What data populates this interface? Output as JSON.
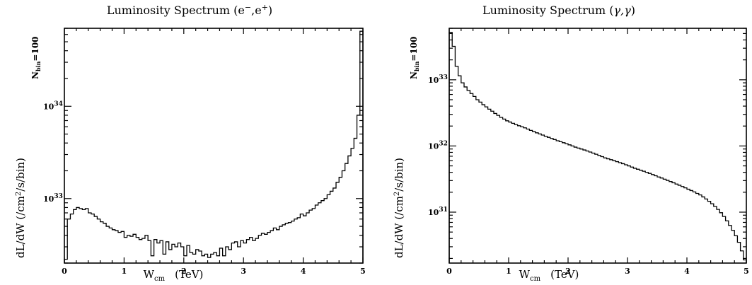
{
  "chart_data": [
    {
      "type": "line",
      "title_parts": {
        "prefix": "Luminosity Spectrum (e",
        "p1": "−",
        "mid": ",e",
        "p2": "+",
        "suffix": ")"
      },
      "title": "Luminosity Spectrum (e−,e+)",
      "xlabel": {
        "main": "W",
        "sub": "cm",
        "unit": "(TeV)"
      },
      "ylabel": {
        "a": "dL/dW  (/cm",
        "sup": "2",
        "b": "/s/bin)"
      },
      "note": {
        "main": "N",
        "sub": "bin",
        "tail": "=100"
      },
      "x_ticks": [
        "0",
        "1",
        "2",
        "3",
        "4",
        "5"
      ],
      "y_ticks": [
        {
          "value": 1e+33,
          "exp": "33"
        },
        {
          "value": 1e+34,
          "exp": "34"
        }
      ],
      "y_scale": "log",
      "xlim": [
        0,
        5
      ],
      "ylim": [
        2e+32,
        7e+34
      ],
      "step": 0.05,
      "values": [
        2.2e+32,
        6e+32,
        6.8e+32,
        7.6e+32,
        8e+32,
        7.8e+32,
        7.6e+32,
        7.8e+32,
        7e+32,
        6.8e+32,
        6.4e+32,
        6e+32,
        5.6e+32,
        5.4e+32,
        5e+32,
        4.8e+32,
        4.6e+32,
        4.5e+32,
        4.3e+32,
        4.4e+32,
        3.8e+32,
        4e+32,
        3.9e+32,
        4.1e+32,
        3.8e+32,
        3.6e+32,
        3.7e+32,
        4e+32,
        3.5e+32,
        2.4e+32,
        3.6e+32,
        3.3e+32,
        3.5e+32,
        2.5e+32,
        3.4e+32,
        2.8e+32,
        3.2e+32,
        3e+32,
        3.3e+32,
        3e+32,
        2.4e+32,
        3.1e+32,
        2.6e+32,
        2.5e+32,
        2.8e+32,
        2.7e+32,
        2.4e+32,
        2.5e+32,
        2.3e+32,
        2.5e+32,
        2.6e+32,
        2.4e+32,
        2.9e+32,
        2.4e+32,
        3e+32,
        2.8e+32,
        3.3e+32,
        3.4e+32,
        3e+32,
        3.5e+32,
        3.3e+32,
        3.6e+32,
        3.8e+32,
        3.5e+32,
        3.7e+32,
        4e+32,
        4.2e+32,
        4.1e+32,
        4.3e+32,
        4.5e+32,
        4.8e+32,
        4.6e+32,
        5e+32,
        5.2e+32,
        5.4e+32,
        5.5e+32,
        5.7e+32,
        6e+32,
        6.2e+32,
        6.8e+32,
        6.5e+32,
        7e+32,
        7.5e+32,
        7.8e+32,
        8.5e+32,
        9e+32,
        9.5e+32,
        1e+33,
        1.1e+33,
        1.2e+33,
        1.3e+33,
        1.5e+33,
        1.7e+33,
        2e+33,
        2.4e+33,
        2.9e+33,
        3.5e+33,
        4.5e+33,
        8e+33,
        6.5e+34
      ]
    },
    {
      "type": "line",
      "title_parts": {
        "prefix": "Luminosity Spectrum (",
        "greek": "γ,γ",
        "suffix": ")"
      },
      "title": "Luminosity Spectrum (γ,γ)",
      "xlabel": {
        "main": "W",
        "sub": "cm",
        "unit": "(TeV)"
      },
      "ylabel": {
        "a": "dL/dW  (/cm",
        "sup": "2",
        "b": "/s/bin)"
      },
      "note": {
        "main": "N",
        "sub": "bin",
        "tail": "=100"
      },
      "x_ticks": [
        "0",
        "1",
        "2",
        "3",
        "4",
        "5"
      ],
      "y_ticks": [
        {
          "value": 1e+31,
          "exp": "31"
        },
        {
          "value": 1e+32,
          "exp": "32"
        },
        {
          "value": 1e+33,
          "exp": "33"
        }
      ],
      "y_scale": "log",
      "xlim": [
        0,
        5
      ],
      "ylim": [
        1.7e+30,
        6e+33
      ],
      "step": 0.05,
      "values": [
        5.2e+33,
        3.2e+33,
        1.6e+33,
        1.15e+33,
        9e+32,
        7.8e+32,
        6.9e+32,
        6.2e+32,
        5.6e+32,
        5e+32,
        4.6e+32,
        4.2e+32,
        3.9e+32,
        3.6e+32,
        3.35e+32,
        3.1e+32,
        2.9e+32,
        2.7e+32,
        2.55e+32,
        2.4e+32,
        2.3e+32,
        2.2e+32,
        2.1e+32,
        2.02e+32,
        1.95e+32,
        1.88e+32,
        1.8e+32,
        1.72e+32,
        1.65e+32,
        1.58e+32,
        1.52e+32,
        1.46e+32,
        1.4e+32,
        1.35e+32,
        1.3e+32,
        1.25e+32,
        1.2e+32,
        1.16e+32,
        1.12e+32,
        1.08e+32,
        1.04e+32,
        1e+32,
        9.6e+31,
        9.3e+31,
        9e+31,
        8.7e+31,
        8.4e+31,
        8.1e+31,
        7.8e+31,
        7.5e+31,
        7.2e+31,
        6.9e+31,
        6.6e+31,
        6.4e+31,
        6.2e+31,
        6e+31,
        5.8e+31,
        5.6e+31,
        5.4e+31,
        5.2e+31,
        5e+31,
        4.8e+31,
        4.6e+31,
        4.45e+31,
        4.3e+31,
        4.15e+31,
        4e+31,
        3.85e+31,
        3.7e+31,
        3.55e+31,
        3.4e+31,
        3.28e+31,
        3.15e+31,
        3.02e+31,
        2.9e+31,
        2.78e+31,
        2.66e+31,
        2.55e+31,
        2.44e+31,
        2.33e+31,
        2.22e+31,
        2.12e+31,
        2.02e+31,
        1.92e+31,
        1.82e+31,
        1.7e+31,
        1.58e+31,
        1.46e+31,
        1.34e+31,
        1.22e+31,
        1.1e+31,
        9.8e+30,
        8.6e+30,
        7.4e+30,
        6.3e+30,
        5.3e+30,
        4.4e+30,
        3.5e+30,
        2.6e+30,
        1.9e+30
      ]
    }
  ]
}
